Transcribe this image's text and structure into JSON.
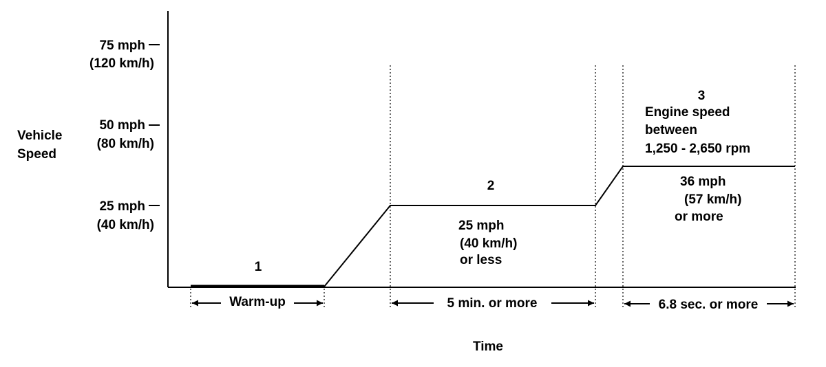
{
  "axes": {
    "y_title_line1": "Vehicle",
    "y_title_line2": "Speed",
    "x_title": "Time",
    "ticks": [
      {
        "mph": "75 mph",
        "kmh": "(120 km/h)"
      },
      {
        "mph": "50 mph",
        "kmh": "(80 km/h)"
      },
      {
        "mph": "25 mph",
        "kmh": "(40 km/h)"
      }
    ]
  },
  "phases": [
    {
      "number": "1",
      "duration": "Warm-up"
    },
    {
      "number": "2",
      "duration": "5 min. or more",
      "speed_line1": "25 mph",
      "speed_line2": "(40 km/h)",
      "speed_line3": "or less"
    },
    {
      "number": "3",
      "duration": "6.8 sec. or more",
      "condition_line1": "Engine speed",
      "condition_line2": "between",
      "condition_line3": "1,250 - 2,650 rpm",
      "speed_line1": "36 mph",
      "speed_line2": "(57 km/h)",
      "speed_line3": "or more"
    }
  ]
}
